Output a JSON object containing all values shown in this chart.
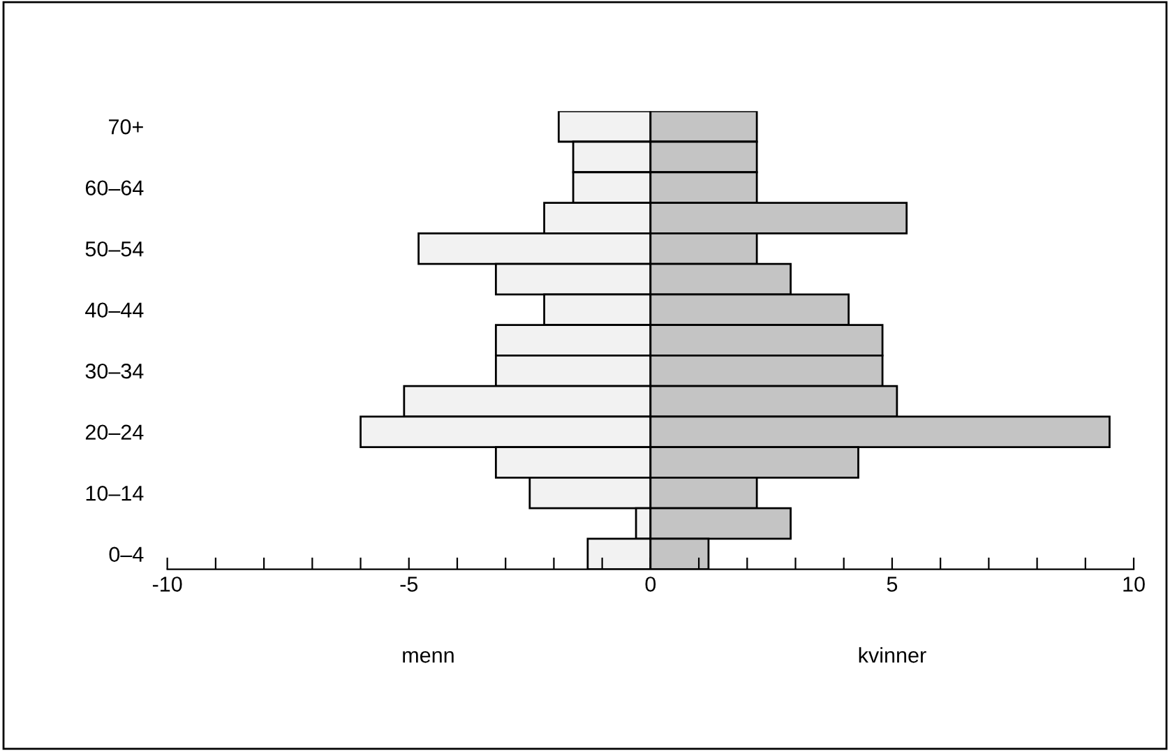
{
  "chart_data": {
    "type": "bar",
    "orientation": "horizontal",
    "categories": [
      "70+",
      null,
      "60–64",
      null,
      "50–54",
      null,
      "40–44",
      null,
      "30–34",
      null,
      "20–24",
      null,
      "10–14",
      null,
      "0–4"
    ],
    "series": [
      {
        "color": "#f2f2f2",
        "values": [
          -1.9,
          -1.6,
          -1.6,
          -2.2,
          -4.8,
          -3.2,
          -2.2,
          -3.2,
          -3.2,
          -5.1,
          -6.0,
          -3.2,
          -2.5,
          -0.3,
          -1.3
        ]
      },
      {
        "color": "#c4c4c4",
        "values": [
          2.2,
          2.2,
          2.2,
          5.3,
          2.2,
          2.9,
          4.1,
          4.8,
          4.8,
          5.1,
          9.5,
          4.3,
          2.2,
          2.9,
          1.2
        ]
      }
    ],
    "xlim": [
      -10,
      10
    ],
    "xticks": [
      -10,
      {
        "value": -9,
        "label": null
      },
      {
        "value": -8,
        "label": null
      },
      {
        "value": -7,
        "label": null
      },
      {
        "value": -6,
        "label": null
      },
      -5,
      {
        "value": -4,
        "label": null
      },
      {
        "value": -3,
        "label": null
      },
      {
        "value": -2,
        "label": null
      },
      {
        "value": -1,
        "label": null
      },
      0,
      {
        "value": 1,
        "label": null
      },
      {
        "value": 2,
        "label": null
      },
      {
        "value": 3,
        "label": null
      },
      {
        "value": 4,
        "label": null
      },
      5,
      {
        "value": 6,
        "label": null
      },
      {
        "value": 7,
        "label": null
      },
      {
        "value": 8,
        "label": null
      },
      {
        "value": 9,
        "label": null
      },
      10
    ],
    "stacked": true,
    "annotations": [
      "menn",
      "kvinner"
    ],
    "grid": false,
    "legend": false
  }
}
